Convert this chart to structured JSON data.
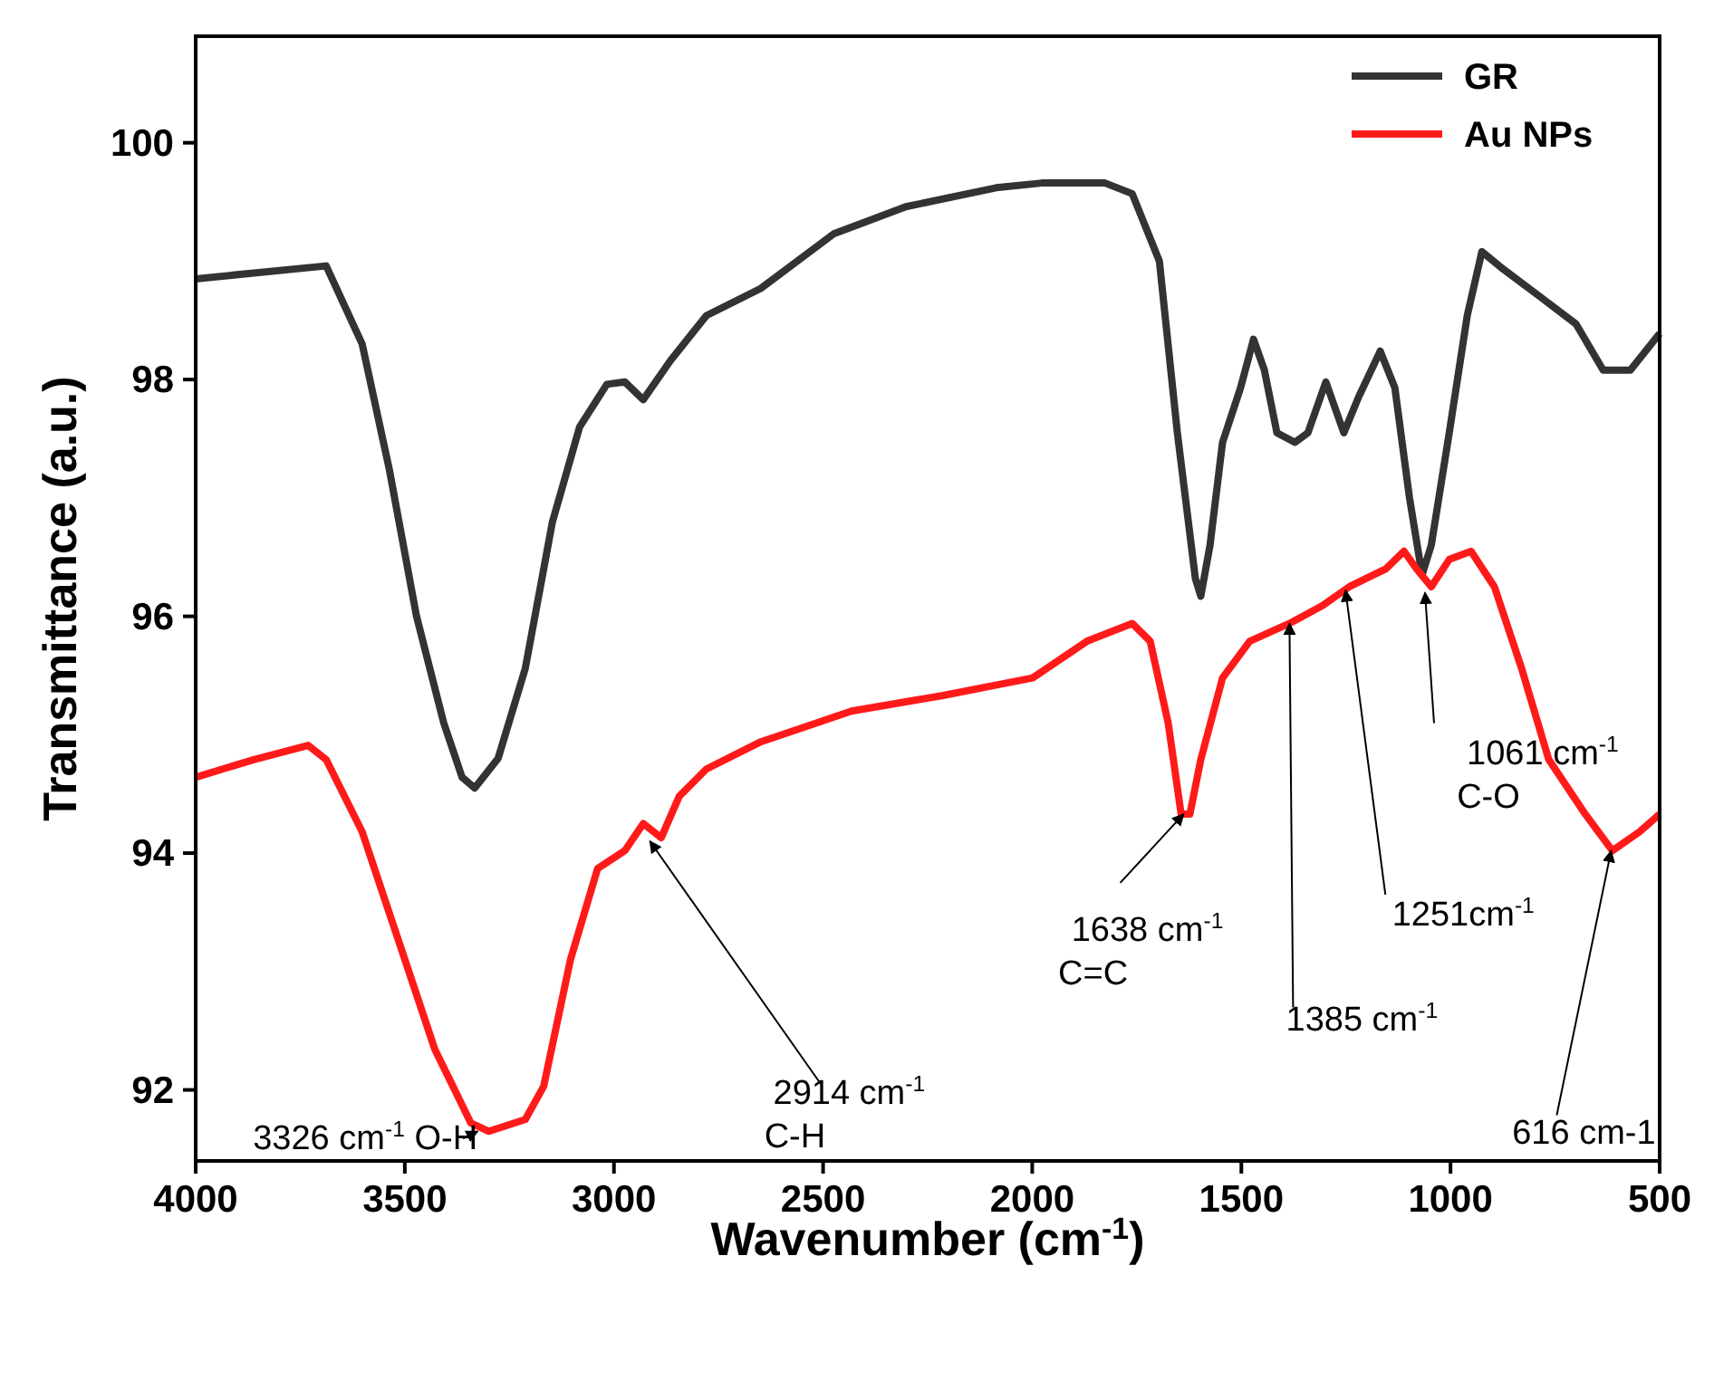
{
  "chart_data": {
    "type": "line",
    "xlabel": "Wavenumber (cm$^{-1}$)",
    "ylabel": "Transmittance (a.u.)",
    "xlim": [
      4000,
      500
    ],
    "xticks": [
      4000,
      3500,
      3000,
      2500,
      2000,
      1500,
      1000,
      500
    ],
    "ylim": [
      91.4,
      100.9
    ],
    "yticks": [
      92,
      94,
      96,
      98,
      100
    ],
    "grid": false,
    "legend": "top right",
    "marker": "none",
    "line_style": "solid",
    "series": [
      {
        "name": "GR",
        "color": "#333333",
        "x": [
          4000,
          3861,
          3688,
          3602,
          3537,
          3472,
          3407,
          3363,
          3333,
          3277,
          3212,
          3147,
          3082,
          3017,
          2974,
          2930,
          2865,
          2779,
          2649,
          2475,
          2302,
          2086,
          1977,
          1826,
          1761,
          1696,
          1653,
          1610,
          1597,
          1575,
          1545,
          1502,
          1471,
          1445,
          1415,
          1372,
          1341,
          1298,
          1255,
          1220,
          1168,
          1133,
          1098,
          1068,
          1046,
          1003,
          960,
          925,
          873,
          786,
          700,
          635,
          570,
          500
        ],
        "values": [
          98.85,
          98.9,
          98.96,
          98.3,
          97.24,
          96.0,
          95.1,
          94.64,
          94.55,
          94.8,
          95.56,
          96.8,
          97.6,
          97.96,
          97.98,
          97.83,
          98.16,
          98.54,
          98.77,
          99.23,
          99.46,
          99.62,
          99.66,
          99.66,
          99.57,
          99.0,
          97.55,
          96.32,
          96.17,
          96.6,
          97.47,
          97.93,
          98.34,
          98.08,
          97.55,
          97.47,
          97.55,
          97.98,
          97.55,
          97.85,
          98.24,
          97.93,
          97.0,
          96.35,
          96.6,
          97.55,
          98.54,
          99.08,
          98.93,
          98.7,
          98.47,
          98.08,
          98.08,
          98.39
        ]
      },
      {
        "name": "Au NPs",
        "color": "#ff1a1a",
        "x": [
          4000,
          3861,
          3731,
          3688,
          3602,
          3515,
          3428,
          3342,
          3299,
          3212,
          3168,
          3104,
          3039,
          2974,
          2930,
          2887,
          2844,
          2779,
          2649,
          2432,
          2216,
          1999,
          1869,
          1761,
          1718,
          1675,
          1644,
          1623,
          1597,
          1545,
          1480,
          1385,
          1306,
          1242,
          1155,
          1111,
          1081,
          1046,
          1003,
          951,
          895,
          830,
          765,
          678,
          613,
          548,
          500
        ],
        "values": [
          94.64,
          94.79,
          94.91,
          94.79,
          94.18,
          93.26,
          92.34,
          91.72,
          91.65,
          91.75,
          92.03,
          93.1,
          93.87,
          94.02,
          94.25,
          94.13,
          94.48,
          94.71,
          94.94,
          95.2,
          95.33,
          95.48,
          95.79,
          95.94,
          95.79,
          95.1,
          94.33,
          94.33,
          94.79,
          95.48,
          95.79,
          95.94,
          96.09,
          96.25,
          96.4,
          96.55,
          96.4,
          96.25,
          96.48,
          96.55,
          96.25,
          95.56,
          94.79,
          94.33,
          94.02,
          94.18,
          94.33
        ]
      }
    ],
    "annotations": [
      {
        "text": "3326 cm$^{-1}$ O-H",
        "x": 3326,
        "y": 91.65
      },
      {
        "text": "2914 cm$^{-1}$",
        "x": 2914,
        "y": 94.1
      },
      "C-H",
      {
        "text": "1638 cm$^{-1}$",
        "x": 1638,
        "y": 94.33
      },
      "C=C",
      {
        "text": "1385 cm$^{-1}$",
        "x": 1385,
        "y": 95.94
      },
      {
        "text": "1251cm$^{-1}$",
        "x": 1251,
        "y": 96.22
      },
      {
        "text": "1061 cm$^{-1}$",
        "x": 1061,
        "y": 96.2
      },
      "C-O",
      {
        "text": "616 cm-1",
        "x": 616,
        "y": 94.02
      }
    ]
  }
}
